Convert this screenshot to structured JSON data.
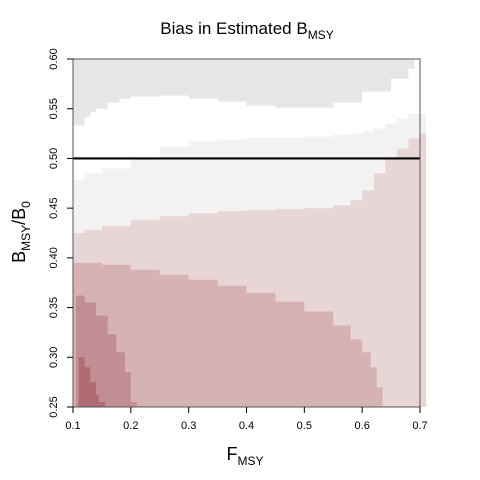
{
  "chart_data": {
    "type": "heatmap",
    "title": "Bias in Estimated B",
    "title_subscript": "MSY",
    "xlabel": "F",
    "xlabel_subscript": "MSY",
    "ylabel_parts": [
      "B",
      "MSY",
      "/B",
      "0"
    ],
    "xlim": [
      0.1,
      0.7
    ],
    "ylim": [
      0.25,
      0.6
    ],
    "xticks": [
      "0.1",
      "0.2",
      "0.3",
      "0.4",
      "0.5",
      "0.6",
      "0.7"
    ],
    "yticks": [
      "0.25",
      "0.30",
      "0.35",
      "0.40",
      "0.45",
      "0.50",
      "0.55",
      "0.60"
    ],
    "reference_line_y": 0.5,
    "grid": false,
    "legend": "none",
    "colors": {
      "band_gray_light": "#e6e6e6",
      "band_white": "#ffffff",
      "band_gray_lighter": "#f2f2f2",
      "band_pink_1": "#e8d6d7",
      "band_pink_2": "#d6b2b5",
      "band_pink_3": "#c38e93",
      "band_pink_4": "#b06c72",
      "reference_line": "#000000"
    },
    "bands": [
      {
        "name": "band_gray_light",
        "color_key": "band_gray_light",
        "x": [
          0.1,
          0.12,
          0.14,
          0.16,
          0.18,
          0.2,
          0.25,
          0.3,
          0.35,
          0.4,
          0.45,
          0.5,
          0.55,
          0.6,
          0.65,
          0.68
        ],
        "lower": [
          0.533,
          0.542,
          0.55,
          0.556,
          0.56,
          0.562,
          0.563,
          0.56,
          0.557,
          0.553,
          0.551,
          0.551,
          0.556,
          0.567,
          0.58,
          0.59
        ],
        "upper": [
          0.6,
          0.6,
          0.6,
          0.6,
          0.6,
          0.6,
          0.6,
          0.6,
          0.6,
          0.6,
          0.6,
          0.6,
          0.6,
          0.6,
          0.6,
          0.6
        ]
      },
      {
        "name": "band_white",
        "color_key": "band_white",
        "x": [
          0.1,
          0.13,
          0.16,
          0.2,
          0.25,
          0.3,
          0.35,
          0.4,
          0.45,
          0.5,
          0.55,
          0.6,
          0.65,
          0.68
        ],
        "lower": [
          0.478,
          0.485,
          0.49,
          0.5,
          0.512,
          0.517,
          0.519,
          0.521,
          0.521,
          0.522,
          0.524,
          0.527,
          0.535,
          0.54
        ],
        "upper": [
          0.533,
          0.547,
          0.556,
          0.562,
          0.563,
          0.56,
          0.557,
          0.553,
          0.551,
          0.551,
          0.556,
          0.567,
          0.58,
          0.59
        ]
      },
      {
        "name": "band_gray_lighter",
        "color_key": "band_gray_lighter",
        "x": [
          0.1,
          0.12,
          0.15,
          0.2,
          0.25,
          0.3,
          0.35,
          0.4,
          0.45,
          0.5,
          0.55,
          0.58,
          0.6,
          0.62,
          0.64,
          0.66,
          0.68,
          0.7
        ],
        "lower": [
          0.425,
          0.428,
          0.432,
          0.438,
          0.442,
          0.445,
          0.447,
          0.448,
          0.449,
          0.45,
          0.453,
          0.458,
          0.468,
          0.485,
          0.5,
          0.51,
          0.52,
          0.525
        ],
        "upper": [
          0.478,
          0.485,
          0.49,
          0.5,
          0.512,
          0.517,
          0.519,
          0.521,
          0.521,
          0.522,
          0.524,
          0.525,
          0.527,
          0.53,
          0.535,
          0.54,
          0.545,
          0.545
        ]
      },
      {
        "name": "band_pink_1",
        "color_key": "band_pink_1",
        "x": [
          0.1,
          0.12,
          0.15,
          0.2,
          0.25,
          0.3,
          0.35,
          0.4,
          0.45,
          0.5,
          0.55,
          0.58,
          0.6,
          0.62,
          0.64,
          0.66,
          0.68,
          0.7
        ],
        "lower": [
          0.25,
          0.25,
          0.25,
          0.25,
          0.25,
          0.25,
          0.25,
          0.25,
          0.25,
          0.25,
          0.25,
          0.25,
          0.25,
          0.25,
          0.25,
          0.25,
          0.25,
          0.25
        ],
        "upper": [
          0.425,
          0.428,
          0.432,
          0.438,
          0.442,
          0.445,
          0.447,
          0.448,
          0.449,
          0.45,
          0.453,
          0.458,
          0.468,
          0.485,
          0.5,
          0.51,
          0.52,
          0.525
        ]
      },
      {
        "name": "band_pink_2",
        "color_key": "band_pink_2",
        "x": [
          0.1,
          0.12,
          0.15,
          0.2,
          0.25,
          0.3,
          0.35,
          0.4,
          0.45,
          0.5,
          0.55,
          0.58,
          0.6,
          0.615,
          0.625
        ],
        "lower": [
          0.25,
          0.25,
          0.25,
          0.25,
          0.25,
          0.25,
          0.25,
          0.25,
          0.25,
          0.25,
          0.25,
          0.25,
          0.25,
          0.25,
          0.25
        ],
        "upper": [
          0.395,
          0.395,
          0.393,
          0.388,
          0.383,
          0.378,
          0.372,
          0.365,
          0.356,
          0.346,
          0.332,
          0.318,
          0.305,
          0.29,
          0.27
        ]
      },
      {
        "name": "band_pink_3",
        "color_key": "band_pink_3",
        "x": [
          0.105,
          0.12,
          0.14,
          0.16,
          0.175,
          0.19,
          0.2
        ],
        "lower": [
          0.25,
          0.25,
          0.25,
          0.25,
          0.25,
          0.25,
          0.25
        ],
        "upper": [
          0.362,
          0.355,
          0.342,
          0.323,
          0.305,
          0.285,
          0.255
        ]
      },
      {
        "name": "band_pink_4",
        "color_key": "band_pink_4",
        "x": [
          0.11,
          0.12,
          0.13,
          0.14,
          0.145
        ],
        "lower": [
          0.25,
          0.25,
          0.25,
          0.25,
          0.25
        ],
        "upper": [
          0.3,
          0.29,
          0.275,
          0.262,
          0.255
        ]
      }
    ]
  }
}
